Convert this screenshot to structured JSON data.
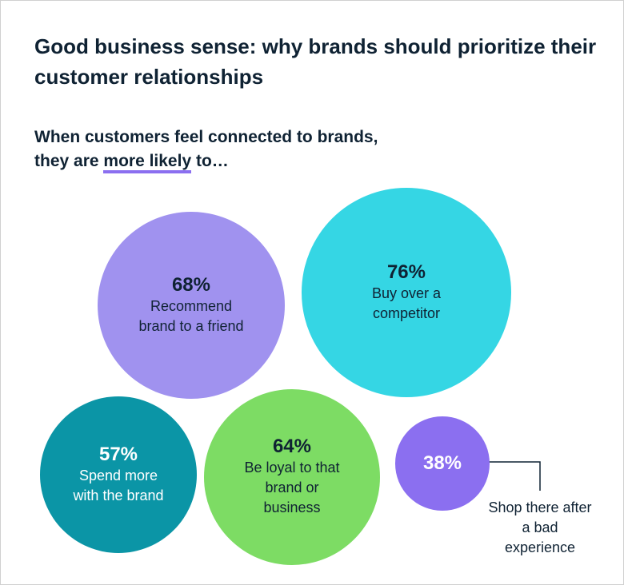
{
  "chart_data": {
    "type": "bubble",
    "title": "Good business sense: why brands should prioritize their customer relationships",
    "subtitle": [
      "When customers feel connected to brands,",
      "they are",
      "more likely",
      "to…"
    ],
    "categories": [
      "Recommend brand to a friend",
      "Buy over a competitor",
      "Spend more with the brand",
      "Be loyal to that brand or business",
      "Shop there after a bad experience"
    ],
    "values": [
      68,
      76,
      57,
      64,
      38
    ],
    "value_labels": [
      "68%",
      "76%",
      "57%",
      "64%",
      "38%"
    ],
    "colors": [
      "#a092ef",
      "#35d6e4",
      "#0b95a6",
      "#7ddc64",
      "#8b6ff0"
    ],
    "text_colors": [
      "#0f2233",
      "#0f2233",
      "#ffffff",
      "#0f2233",
      "#ffffff"
    ]
  }
}
